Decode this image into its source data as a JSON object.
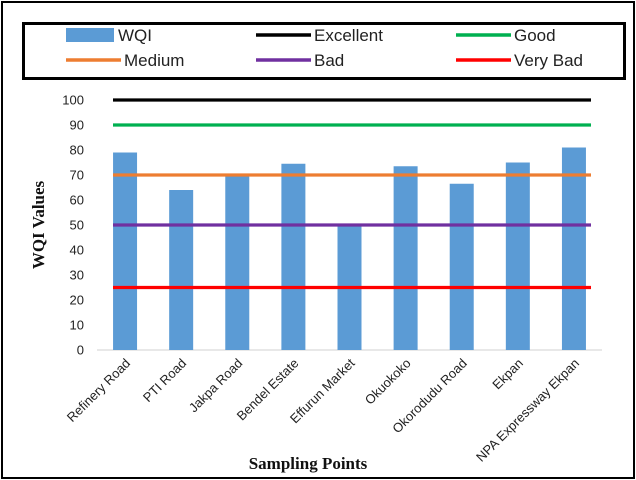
{
  "chart_data": {
    "type": "bar",
    "xlabel": "Sampling Points",
    "ylabel": "WQI Values",
    "ylim": [
      0,
      100
    ],
    "yticks": [
      0,
      10,
      20,
      30,
      40,
      50,
      60,
      70,
      80,
      90,
      100
    ],
    "grid": false,
    "legend_position": "top",
    "categories": [
      "Refinery Road",
      "PTI Road",
      "Jakpa Road",
      "Bendel Estate",
      "Effurun Market",
      "Okuokoko",
      "Okorodudu Road",
      "Ekpan",
      "NPA Expressway Ekpan"
    ],
    "series": [
      {
        "name": "WQI",
        "kind": "bar",
        "color": "#5B9BD5",
        "values": [
          79,
          64,
          70,
          74.5,
          50,
          73.5,
          66.5,
          75,
          81
        ]
      }
    ],
    "reference_lines": [
      {
        "name": "Excellent",
        "value": 100,
        "color": "#000000"
      },
      {
        "name": "Good",
        "value": 90,
        "color": "#00B050"
      },
      {
        "name": "Medium",
        "value": 70,
        "color": "#ED7D31"
      },
      {
        "name": "Bad",
        "value": 50,
        "color": "#7030A0"
      },
      {
        "name": "Very Bad",
        "value": 25,
        "color": "#FF0000"
      }
    ]
  }
}
